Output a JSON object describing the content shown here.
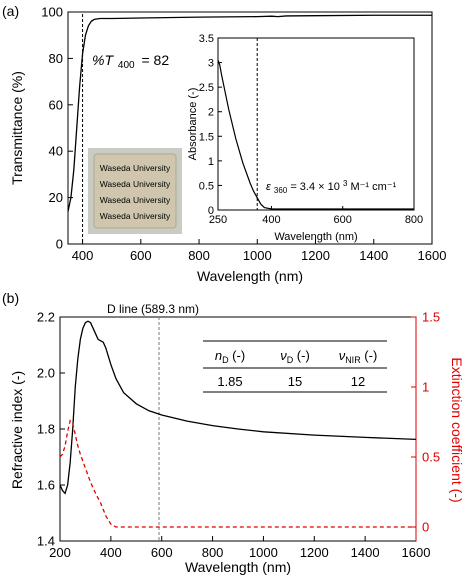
{
  "chart_data": [
    {
      "panel_label": "(a)",
      "type": "line",
      "xlabel": "Wavelength (nm)",
      "ylabel": "Transmittance (%)",
      "xlim": [
        350,
        1600
      ],
      "ylim": [
        0,
        100
      ],
      "xticks": [
        400,
        600,
        800,
        1000,
        1200,
        1400,
        1600
      ],
      "yticks": [
        0,
        20,
        40,
        60,
        80,
        100
      ],
      "annotation": "%T 400 = 82",
      "annotation_parts": {
        "italic": "%T",
        "sub": "400",
        "rest": "= 82"
      },
      "marker_line_x": 400,
      "series": [
        {
          "x": [
            350,
            360,
            370,
            380,
            390,
            400,
            410,
            420,
            430,
            440,
            460,
            500,
            600,
            800,
            1000,
            1050,
            1070,
            1100,
            1200,
            1400,
            1600
          ],
          "y": [
            14,
            20,
            32,
            50,
            68,
            82,
            90,
            94,
            96,
            96.8,
            97.2,
            97.2,
            97.4,
            97.8,
            98,
            98.2,
            98,
            98.3,
            98.4,
            98.6,
            98.6
          ]
        }
      ],
      "photo_text": [
        "Waseda University",
        "Waseda University",
        "Waseda University",
        "Waseda University"
      ],
      "inset": {
        "type": "line",
        "xlabel": "Wavelength (nm)",
        "ylabel": "Absorbance (-)",
        "xlim": [
          250,
          800
        ],
        "ylim": [
          0,
          3.5
        ],
        "xticks": [
          250,
          400,
          600,
          800
        ],
        "yticks": [
          0,
          0.5,
          1,
          1.5,
          2,
          2.5,
          3,
          3.5
        ],
        "marker_line_x": 360,
        "annotation": "ε360 = 3.4 × 10³ M⁻¹ cm⁻¹",
        "annotation_parts": {
          "italic": "ε",
          "sub": "360",
          "mid": " = 3.4 × 10",
          "sup": "3",
          "rest": " M⁻¹ cm⁻¹"
        },
        "series": [
          {
            "x": [
              250,
              255,
              260,
              270,
              280,
              290,
              300,
              310,
              320,
              330,
              340,
              350,
              360,
              370,
              380,
              400,
              500,
              600,
              700,
              800
            ],
            "y": [
              3.05,
              2.95,
              2.75,
              2.4,
              2.05,
              1.75,
              1.45,
              1.2,
              0.95,
              0.75,
              0.55,
              0.38,
              0.25,
              0.12,
              0.05,
              0.02,
              0.02,
              0.02,
              0.02,
              0.02
            ]
          }
        ]
      }
    },
    {
      "panel_label": "(b)",
      "type": "line",
      "xlabel": "Wavelength (nm)",
      "ylabel": "Refractive index (-)",
      "y2label": "Extinction coefficient (-)",
      "xlim": [
        200,
        1600
      ],
      "ylim": [
        1.4,
        2.2
      ],
      "y2lim": [
        -0.1,
        1.5
      ],
      "xticks": [
        200,
        400,
        600,
        800,
        1000,
        1200,
        1400,
        1600
      ],
      "yticks": [
        1.4,
        1.6,
        1.8,
        2.0,
        2.2
      ],
      "y2ticks": [
        0,
        0.5,
        1,
        1.5
      ],
      "y2color": "#e00000",
      "marker_line_x": 589.3,
      "marker_label": "D line (589.3 nm)",
      "series": [
        {
          "axis": "left",
          "color": "#000000",
          "dash": "solid",
          "x": [
            200,
            210,
            220,
            230,
            240,
            250,
            260,
            270,
            280,
            290,
            300,
            310,
            320,
            330,
            340,
            350,
            360,
            370,
            380,
            400,
            420,
            450,
            500,
            550,
            600,
            700,
            800,
            900,
            1000,
            1200,
            1400,
            1600
          ],
          "y": [
            1.6,
            1.58,
            1.57,
            1.6,
            1.68,
            1.8,
            1.95,
            2.05,
            2.12,
            2.16,
            2.18,
            2.185,
            2.18,
            2.16,
            2.14,
            2.12,
            2.115,
            2.11,
            2.09,
            2.03,
            1.98,
            1.93,
            1.89,
            1.865,
            1.85,
            1.828,
            1.812,
            1.8,
            1.79,
            1.778,
            1.77,
            1.763
          ]
        },
        {
          "axis": "right",
          "color": "#e00000",
          "dash": "dashed",
          "x": [
            200,
            210,
            220,
            230,
            240,
            250,
            260,
            270,
            280,
            300,
            320,
            340,
            360,
            380,
            400,
            420,
            500,
            600,
            800,
            1000,
            1200,
            1400,
            1600
          ],
          "y": [
            0.5,
            0.52,
            0.58,
            0.68,
            0.76,
            0.74,
            0.66,
            0.58,
            0.52,
            0.42,
            0.32,
            0.24,
            0.17,
            0.08,
            0.02,
            0.0,
            0.0,
            0.0,
            0.0,
            0.0,
            0.0,
            0.0,
            0.0
          ]
        }
      ],
      "table": {
        "headers": [
          {
            "italic": "n",
            "sub": "D",
            "rest": " (-)"
          },
          {
            "italic": "ν",
            "sub": "D",
            "rest": " (-)"
          },
          {
            "italic": "ν",
            "sub": "NIR",
            "rest": " (-)"
          }
        ],
        "values": [
          "1.85",
          "15",
          "12"
        ]
      }
    }
  ]
}
